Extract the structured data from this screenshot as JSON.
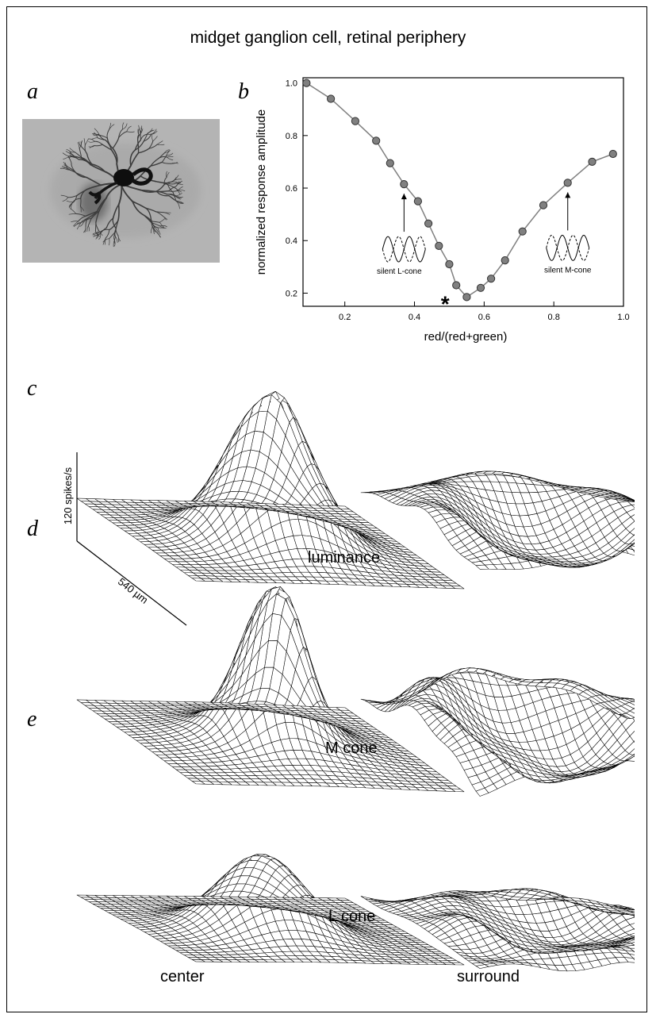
{
  "figure": {
    "title": "midget ganglion cell, retinal periphery",
    "panel_labels": [
      "a",
      "b",
      "c",
      "d",
      "e"
    ],
    "row_labels": {
      "c": "luminance",
      "d": "M cone",
      "e": "L cone"
    },
    "column_labels": {
      "left": "center",
      "right": "surround"
    },
    "scale_bar": {
      "vertical": "120 spikes/s",
      "horizontal": "540 µm"
    },
    "cell_image_description": "photomicrograph"
  },
  "chart_data": {
    "type": "line",
    "xlabel": "red/(red+green)",
    "ylabel": "normalized response amplitude",
    "xlim": [
      0.08,
      1.0
    ],
    "ylim": [
      0.15,
      1.02
    ],
    "xticks": [
      "0.2",
      "0.4",
      "0.6",
      "0.8",
      "1.0"
    ],
    "yticks": [
      "0.2",
      "0.4",
      "0.6",
      "0.8",
      "1.0"
    ],
    "x": [
      0.09,
      0.16,
      0.23,
      0.29,
      0.33,
      0.37,
      0.41,
      0.44,
      0.47,
      0.5,
      0.52,
      0.55,
      0.59,
      0.62,
      0.66,
      0.71,
      0.77,
      0.84,
      0.91,
      0.97
    ],
    "y": [
      1.0,
      0.94,
      0.855,
      0.78,
      0.695,
      0.615,
      0.55,
      0.465,
      0.38,
      0.31,
      0.23,
      0.185,
      0.22,
      0.255,
      0.325,
      0.435,
      0.535,
      0.62,
      0.7,
      0.73
    ],
    "annotations": [
      {
        "text": "silent L-cone",
        "x": 0.37,
        "y": 0.615
      },
      {
        "text": "silent M-cone",
        "x": 0.84,
        "y": 0.62
      },
      {
        "text": "*",
        "x": 0.52,
        "y": 0.185
      }
    ],
    "colors": {
      "line": "#808080",
      "marker": "#808080",
      "marker_edge": "#333333"
    }
  }
}
